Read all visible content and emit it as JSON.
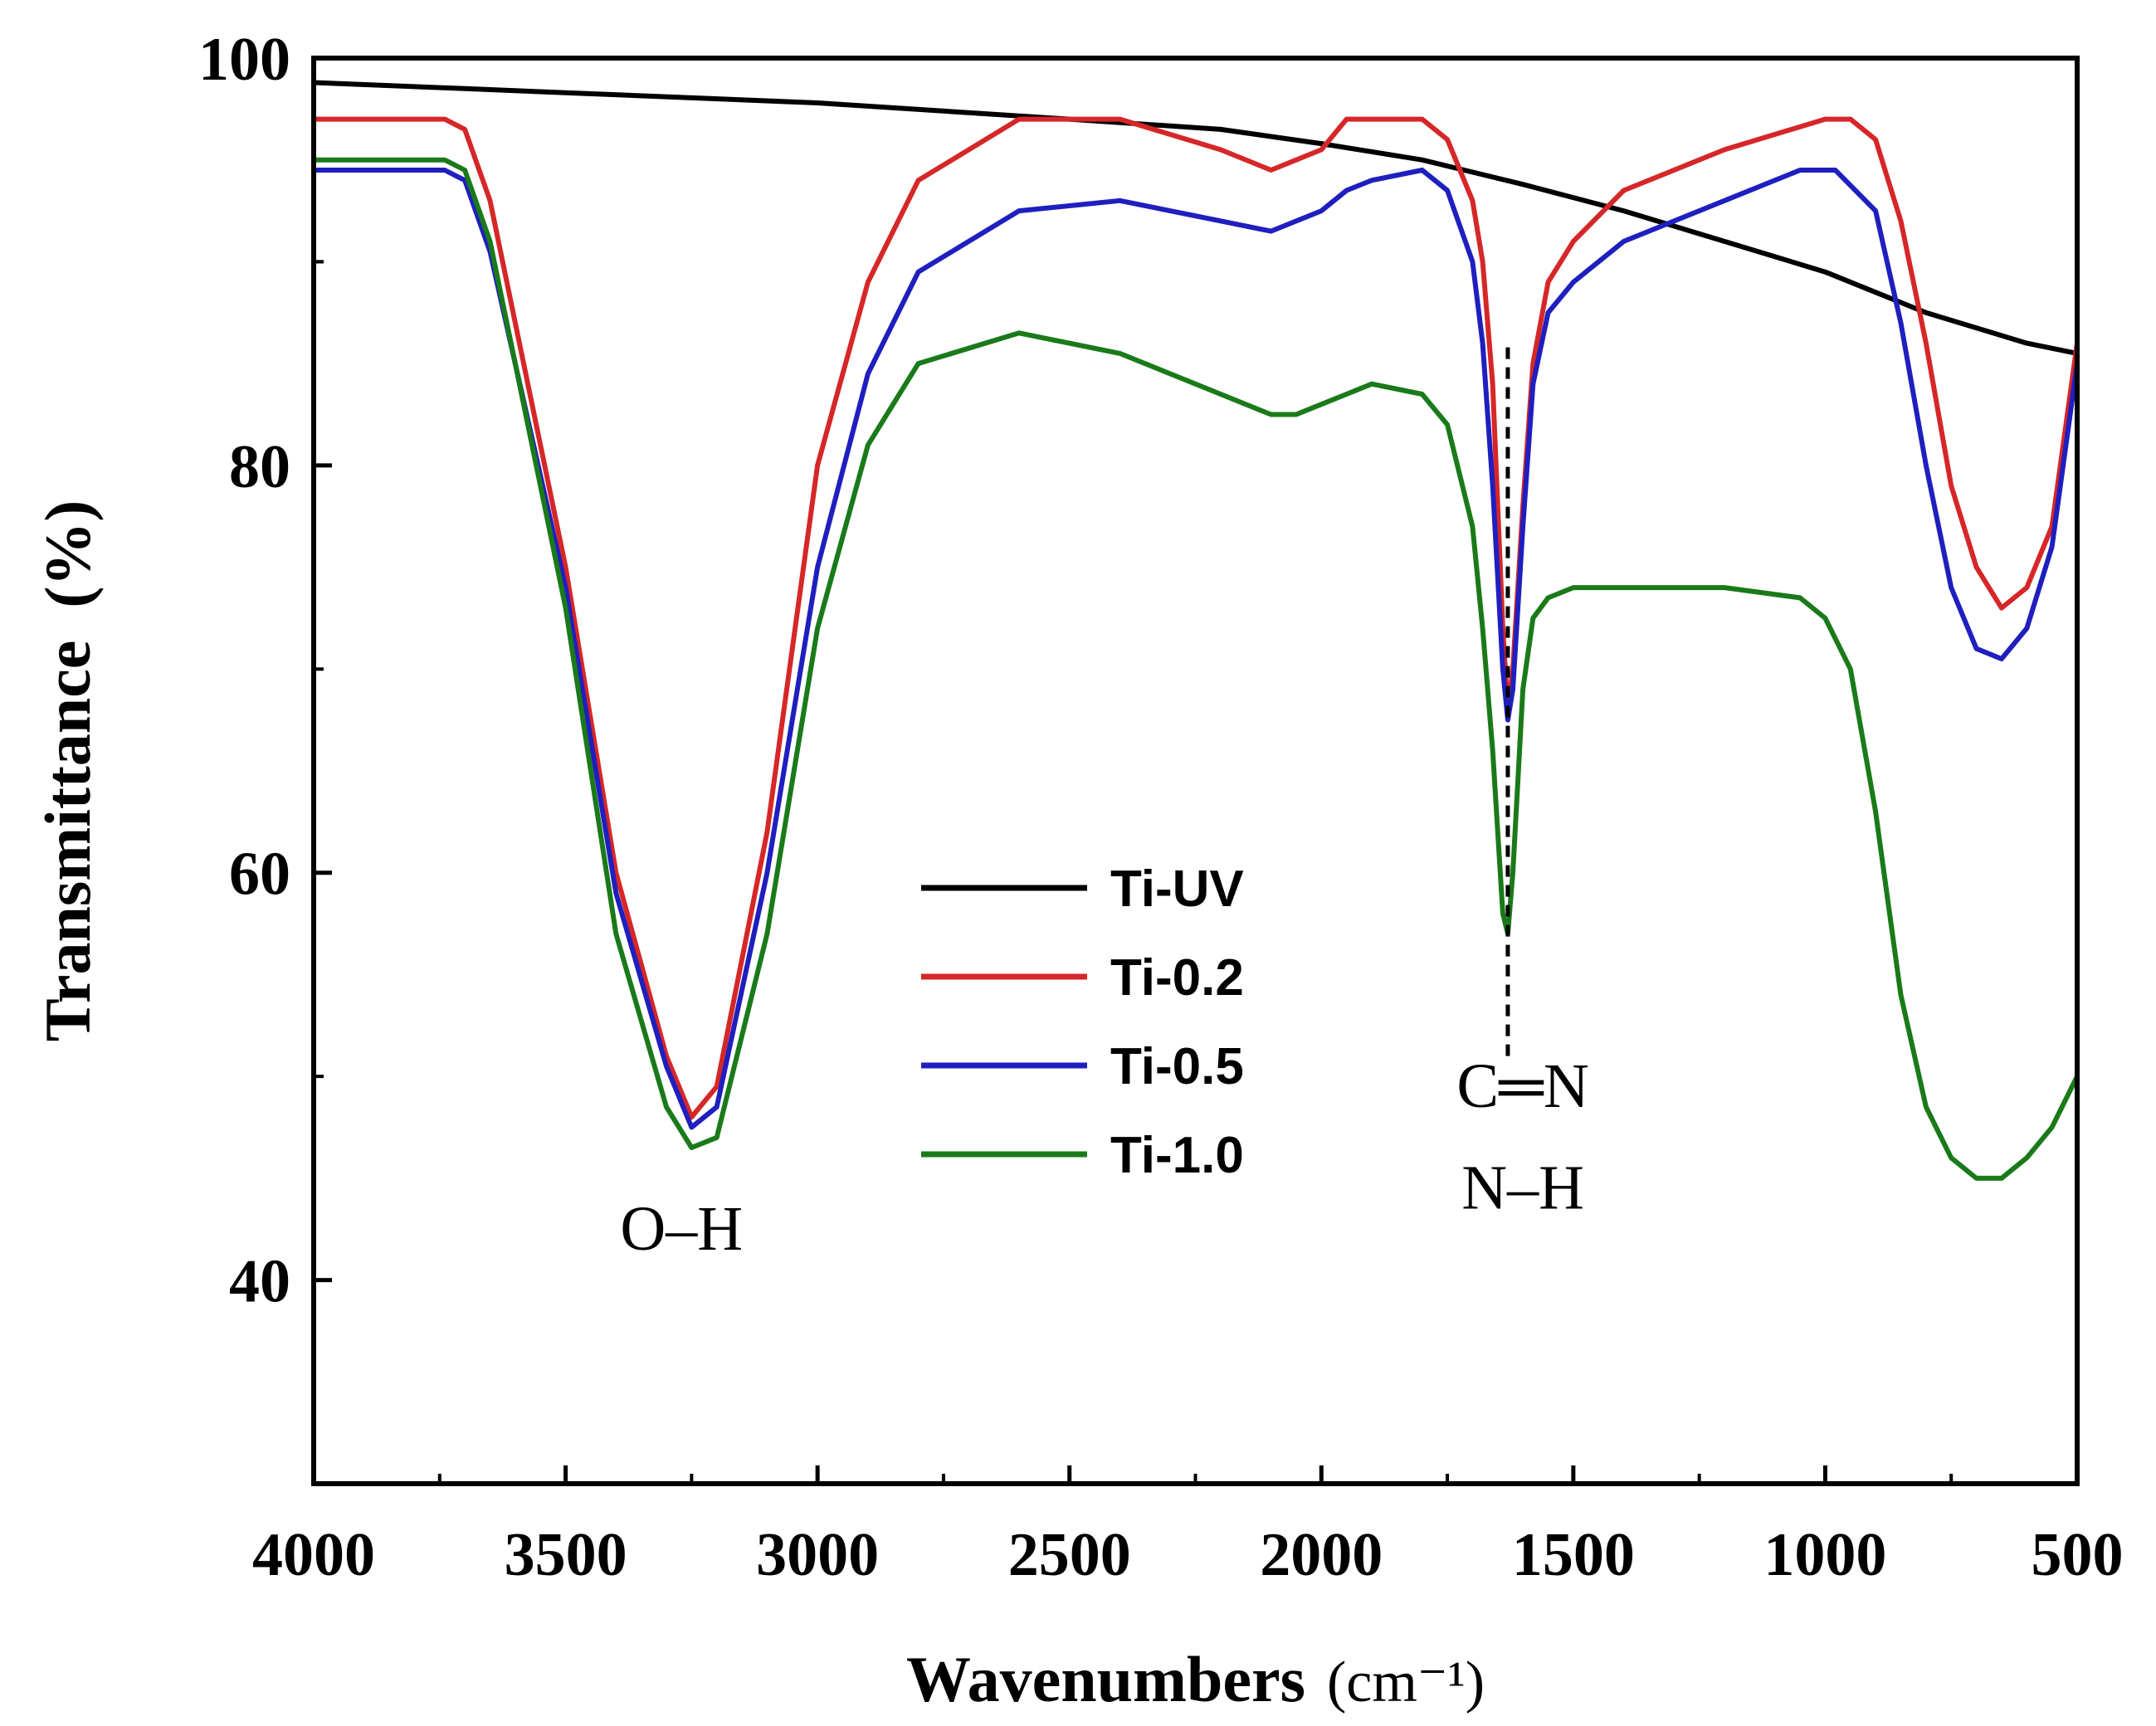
{
  "chart_data": {
    "type": "line",
    "title": "",
    "xlabel": "Wavenumbers",
    "xlabel_unit": "(cm⁻¹)",
    "ylabel": "Transmittance  (%)",
    "xlim": [
      4000,
      500
    ],
    "ylim": [
      30,
      100
    ],
    "x_ticks": [
      4000,
      3500,
      3000,
      2500,
      2000,
      1500,
      1000,
      500
    ],
    "y_ticks": [
      40,
      60,
      80,
      100
    ],
    "grid": false,
    "legend_position": "center",
    "series": [
      {
        "name": "Ti-UV",
        "color": "#000000",
        "x": [
          4000,
          3700,
          3500,
          3000,
          2500,
          2200,
          2000,
          1800,
          1600,
          1400,
          1200,
          1000,
          800,
          600,
          500
        ],
        "values": [
          98.8,
          98.5,
          98.3,
          97.8,
          97.0,
          96.5,
          95.8,
          95.0,
          93.8,
          92.5,
          91.0,
          89.5,
          87.5,
          86.0,
          85.5
        ]
      },
      {
        "name": "Ti-0.2",
        "color": "#d62728",
        "x": [
          4000,
          3740,
          3700,
          3650,
          3500,
          3400,
          3300,
          3250,
          3200,
          3100,
          3000,
          2900,
          2800,
          2600,
          2400,
          2200,
          2100,
          2000,
          1950,
          1900,
          1800,
          1750,
          1700,
          1680,
          1660,
          1640,
          1630,
          1620,
          1600,
          1580,
          1550,
          1500,
          1400,
          1200,
          1000,
          950,
          900,
          850,
          800,
          750,
          700,
          650,
          600,
          550,
          500
        ],
        "values": [
          97.0,
          97.0,
          96.5,
          93.0,
          75.0,
          60.0,
          51.0,
          48.0,
          49.5,
          62.0,
          80.0,
          89.0,
          94.0,
          97.0,
          97.0,
          95.5,
          94.5,
          95.5,
          97.0,
          97.0,
          97.0,
          96.0,
          93.0,
          90.0,
          84.0,
          72.0,
          68.0,
          70.0,
          78.0,
          85.0,
          89.0,
          91.0,
          93.5,
          95.5,
          97.0,
          97.0,
          96.0,
          92.0,
          86.0,
          79.0,
          75.0,
          73.0,
          74.0,
          77.0,
          86.0
        ]
      },
      {
        "name": "Ti-0.5",
        "color": "#1f1fbf",
        "x": [
          4000,
          3740,
          3700,
          3650,
          3500,
          3400,
          3300,
          3250,
          3200,
          3100,
          3000,
          2900,
          2800,
          2600,
          2400,
          2200,
          2100,
          2000,
          1950,
          1900,
          1800,
          1750,
          1700,
          1680,
          1660,
          1640,
          1630,
          1620,
          1600,
          1580,
          1550,
          1500,
          1400,
          1200,
          1050,
          980,
          900,
          850,
          800,
          750,
          700,
          650,
          600,
          550,
          500
        ],
        "values": [
          94.5,
          94.5,
          94.0,
          90.5,
          74.0,
          59.0,
          50.5,
          47.5,
          48.5,
          60.0,
          75.0,
          84.5,
          89.5,
          92.5,
          93.0,
          92.0,
          91.5,
          92.5,
          93.5,
          94.0,
          94.5,
          93.5,
          90.0,
          86.0,
          79.0,
          70.0,
          67.5,
          69.0,
          77.0,
          84.0,
          87.5,
          89.0,
          91.0,
          93.0,
          94.5,
          94.5,
          92.5,
          87.0,
          80.0,
          74.0,
          71.0,
          70.5,
          72.0,
          76.0,
          85.0
        ]
      },
      {
        "name": "Ti-1.0",
        "color": "#1a7a1a",
        "x": [
          4000,
          3740,
          3700,
          3650,
          3500,
          3400,
          3300,
          3250,
          3200,
          3100,
          3000,
          2900,
          2800,
          2600,
          2400,
          2200,
          2100,
          2050,
          2000,
          1950,
          1900,
          1800,
          1750,
          1700,
          1680,
          1660,
          1640,
          1630,
          1620,
          1600,
          1580,
          1550,
          1500,
          1400,
          1200,
          1050,
          1000,
          950,
          900,
          850,
          800,
          750,
          700,
          650,
          600,
          550,
          500
        ],
        "values": [
          95.0,
          95.0,
          94.5,
          91.0,
          73.0,
          57.0,
          48.5,
          46.5,
          47.0,
          57.0,
          72.0,
          81.0,
          85.0,
          86.5,
          85.5,
          83.5,
          82.5,
          82.5,
          83.0,
          83.5,
          84.0,
          83.5,
          82.0,
          77.0,
          72.0,
          66.0,
          58.0,
          57.0,
          60.0,
          69.0,
          72.5,
          73.5,
          74.0,
          74.0,
          74.0,
          73.5,
          72.5,
          70.0,
          63.0,
          54.0,
          48.5,
          46.0,
          45.0,
          45.0,
          46.0,
          47.5,
          50.0
        ]
      }
    ],
    "annotations": [
      {
        "text": "O–H",
        "x": 3270,
        "y": 41.5
      },
      {
        "text": "C═N",
        "x": 1600,
        "y": 48.5
      },
      {
        "text": "N–H",
        "x": 1600,
        "y": 43.5
      }
    ],
    "marker_line": {
      "x": 1630,
      "y_from": 51.0,
      "y_to": 86.0
    }
  }
}
